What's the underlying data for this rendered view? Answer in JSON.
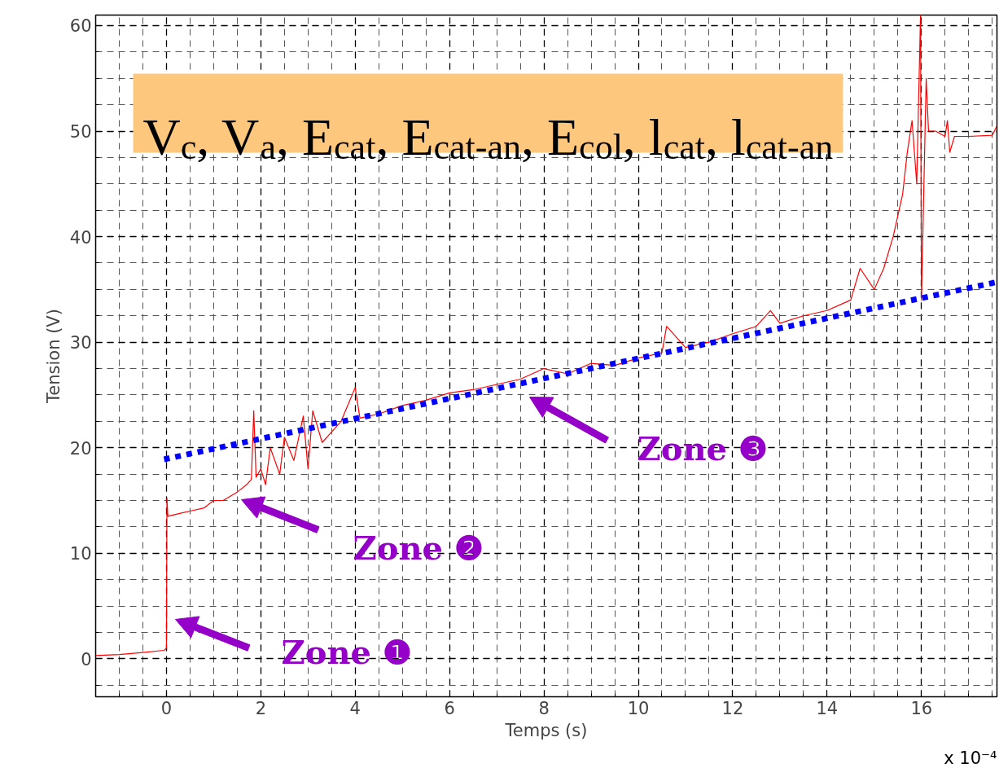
{
  "chart_data": {
    "type": "line",
    "xlabel": "Temps (s)",
    "ylabel": "Tension (V)",
    "xlim": [
      -1.5,
      17.6
    ],
    "ylim": [
      -3.6,
      61
    ],
    "xticks": [
      0,
      2,
      4,
      6,
      8,
      10,
      12,
      14,
      16
    ],
    "yticks": [
      0,
      10,
      20,
      30,
      40,
      50,
      60
    ],
    "grid": true,
    "series": [
      {
        "color": "#ff0000",
        "line_style": "solid",
        "x": [
          -1.5,
          -1,
          -0.5,
          -0.05,
          0,
          0.01,
          0.03,
          0.3,
          0.5,
          0.8,
          1.0,
          1.2,
          1.5,
          1.7,
          1.8,
          1.85,
          1.9,
          2.0,
          2.1,
          2.2,
          2.4,
          2.5,
          2.7,
          2.9,
          3.0,
          3.1,
          3.3,
          3.5,
          3.7,
          4.0,
          4.1,
          4.5,
          5,
          5.5,
          6,
          6.5,
          7,
          7.5,
          8,
          8.5,
          9,
          9.5,
          10,
          10.5,
          10.6,
          11,
          11.5,
          12,
          12.5,
          12.8,
          13,
          13.5,
          14,
          14.5,
          14.7,
          15,
          15.2,
          15.4,
          15.6,
          15.7,
          15.8,
          15.9,
          15.98,
          16.0,
          16.1,
          16.15,
          16.3,
          16.5,
          16.55,
          16.6,
          16.7,
          17,
          17.5,
          17.6
        ],
        "values": [
          0.3,
          0.4,
          0.6,
          0.8,
          1.0,
          15.2,
          13.5,
          13.8,
          14.0,
          14.3,
          15.0,
          15.0,
          15.8,
          16.5,
          17.0,
          23.5,
          17.2,
          18,
          16.5,
          20,
          17.5,
          21,
          18.8,
          23,
          18,
          23.5,
          20.5,
          21.5,
          22.5,
          25.7,
          22.8,
          23.2,
          24,
          24.5,
          25.2,
          25.5,
          26,
          26.5,
          27.5,
          27,
          28,
          27.8,
          28.5,
          29,
          31.5,
          29.5,
          30,
          30.8,
          31.5,
          33,
          31.8,
          32.5,
          33,
          34,
          37,
          35,
          37,
          40,
          44,
          48,
          51,
          45,
          61,
          34,
          55,
          50,
          50,
          49.5,
          51,
          48,
          49.5,
          49.5,
          49.6,
          50.5
        ]
      },
      {
        "type": "line",
        "color": "#0000ff",
        "line_style": "dotted",
        "x": [
          -0.05,
          17.6
        ],
        "values": [
          18.9,
          35.7
        ]
      }
    ],
    "annotations": [
      "V$_{c}$, V$_{a}$, E$_{cat}$, E$_{cat-an}$, E$_{col}$, l$_{cat}$, l$_{cat-an}$",
      "x 10⁻⁴",
      "Zone ❶",
      "Zone ❷",
      "Zone ❸"
    ]
  }
}
